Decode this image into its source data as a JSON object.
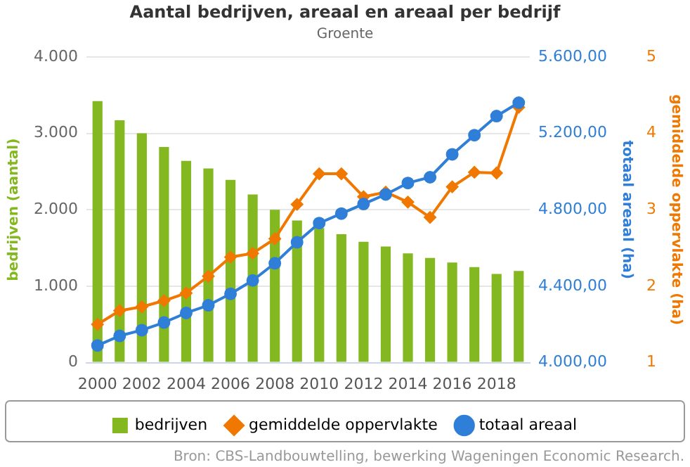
{
  "chart_data": {
    "type": "bar",
    "title": "Aantal bedrijven, areaal en areaal per bedrijf",
    "subtitle": "Groente",
    "categories": [
      "2000",
      null,
      "2002",
      null,
      "2004",
      null,
      "2006",
      null,
      "2008",
      null,
      "2010",
      null,
      "2012",
      null,
      "2014",
      null,
      "2016",
      null,
      "2018",
      null
    ],
    "ylabel": "bedrijven (aantal)",
    "y2label": "totaal areaal (ha)",
    "y3label": "gemiddelde oppervlakte (ha)",
    "ylim": [
      0,
      4000
    ],
    "yticks": [
      0,
      {
        "value": 1000,
        "label": "1.000"
      },
      {
        "value": 2000,
        "label": "2.000"
      },
      {
        "value": 3000,
        "label": "3.000"
      },
      {
        "value": 4000,
        "label": "4.000"
      }
    ],
    "y2lim": [
      4000,
      5600
    ],
    "y2ticks": [
      {
        "value": 4000,
        "label": "4.000,00"
      },
      {
        "value": 4400,
        "label": "4.400,00"
      },
      {
        "value": 4800,
        "label": "4.800,00"
      },
      {
        "value": 5200,
        "label": "5.200,00"
      },
      {
        "value": 5600,
        "label": "5.600,00"
      }
    ],
    "y3lim": [
      1,
      5
    ],
    "y3ticks": [
      1,
      2,
      3,
      4,
      5
    ],
    "series": [
      {
        "name": "bedrijven",
        "color": "#84b820",
        "values": [
          3420,
          3170,
          3000,
          2820,
          2640,
          2540,
          2390,
          2200,
          2000,
          1860,
          1760,
          1680,
          1580,
          1520,
          1430,
          1370,
          1310,
          1250,
          1160,
          1200
        ]
      },
      {
        "name": "gemiddelde oppervlakte",
        "type": "line",
        "axis": "y3",
        "marker": "diamond",
        "color": "#f07800",
        "values": [
          1.5,
          1.68,
          1.73,
          1.81,
          1.91,
          2.13,
          2.38,
          2.43,
          2.62,
          3.07,
          3.47,
          3.47,
          3.17,
          3.23,
          3.1,
          2.9,
          3.3,
          3.49,
          3.48,
          4.34
        ]
      },
      {
        "name": "totaal areaal",
        "type": "line",
        "axis": "y2",
        "marker": "circle",
        "color": "#2f7ed8",
        "values": [
          4090,
          4140,
          4170,
          4210,
          4260,
          4300,
          4360,
          4430,
          4520,
          4630,
          4730,
          4780,
          4830,
          4880,
          4940,
          4970,
          5090,
          5190,
          5290,
          5360
        ]
      }
    ],
    "grid": "y",
    "legend": "bottom",
    "annotations": [
      "Bron: CBS-Landbouwtelling, bewerking Wageningen Economic Research."
    ]
  }
}
